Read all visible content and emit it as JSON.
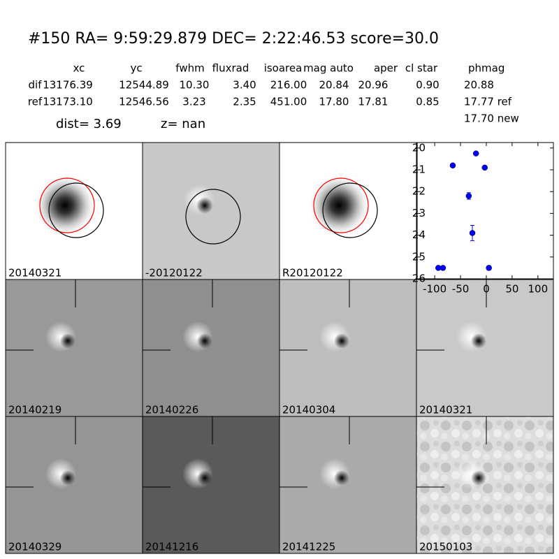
{
  "header": {
    "title": "#150   RA= 9:59:29.879 DEC= 2:22:46.53      score=30.0"
  },
  "table": {
    "columns": [
      "xc",
      "yc",
      "fwhm",
      "fluxrad",
      "isoarea",
      "mag auto",
      "aper",
      "cl star",
      "phmag"
    ],
    "rows": [
      [
        "dif",
        "13176.39",
        "12544.89",
        "10.30",
        "3.40",
        "216.00",
        "20.84",
        "20.96",
        "0.90",
        "20.88"
      ],
      [
        "ref",
        "13173.10",
        "12546.56",
        "3.23",
        "2.35",
        "451.00",
        "17.80",
        "17.81",
        "0.85",
        "17.77 ref"
      ]
    ],
    "note": "17.70 new"
  },
  "info": {
    "dist": "dist=  3.69",
    "z": "z=   nan"
  },
  "panels": [
    {
      "label": "20140321"
    },
    {
      "label": "-20120122"
    },
    {
      "label": "R20120122"
    },
    {
      "label": "20140219"
    },
    {
      "label": "20140226"
    },
    {
      "label": "20140304"
    },
    {
      "label": "20140321",
      "label_color": "#ff0000"
    },
    {
      "label": "20140329"
    },
    {
      "label": "20141216"
    },
    {
      "label": "20141225"
    },
    {
      "label": "20150103"
    }
  ],
  "chart_data": {
    "type": "scatter",
    "color": "#0000ff",
    "x": [
      -93,
      -84,
      -65,
      -34,
      -27,
      -20,
      -3,
      5
    ],
    "y": [
      25.5,
      25.5,
      20.8,
      22.2,
      23.9,
      20.25,
      20.9,
      25.5
    ],
    "errors": [
      null,
      null,
      null,
      0.15,
      0.35,
      null,
      null,
      0.1
    ],
    "xlim": [
      -134,
      130
    ],
    "ylim": [
      26,
      19.75
    ],
    "xticks": [
      -100,
      -50,
      0,
      50,
      100
    ],
    "yticks": [
      20,
      21,
      22,
      23,
      24,
      25,
      26
    ]
  }
}
